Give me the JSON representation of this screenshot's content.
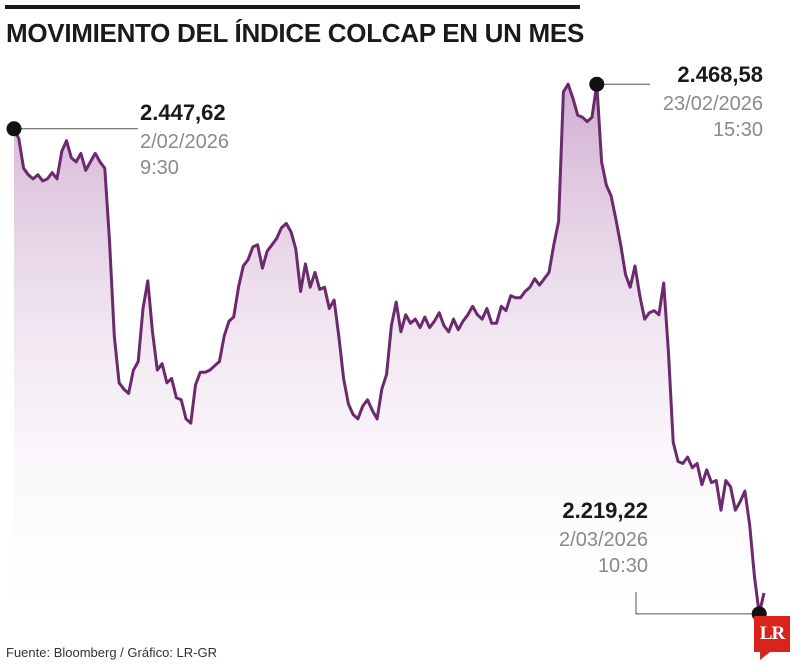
{
  "header": {
    "title": "MOVIMIENTO DEL ÍNDICE COLCAP EN UN MES"
  },
  "footer": {
    "source": "Fuente: Bloomberg / Gráfico: LR-GR",
    "logo_text": "LR"
  },
  "colors": {
    "line": "#6b2a6e",
    "fill_top": "#c9a0c9",
    "marker": "#111111",
    "logo": "#d9241b"
  },
  "chart_data": {
    "type": "area",
    "title": "MOVIMIENTO DEL ÍNDICE COLCAP EN UN MES",
    "xlabel": "",
    "ylabel": "",
    "ylim": [
      2205,
      2480
    ],
    "grid": false,
    "series": [
      {
        "values": [
          2447.6,
          2443,
          2429,
          2426,
          2424,
          2426,
          2423,
          2424,
          2427,
          2424,
          2437,
          2442,
          2434,
          2432,
          2436,
          2428,
          2432,
          2436,
          2432,
          2429,
          2395,
          2350,
          2328,
          2325,
          2323,
          2334,
          2338,
          2363,
          2376,
          2352,
          2334,
          2337,
          2328,
          2330,
          2321,
          2320,
          2311,
          2309,
          2327,
          2333,
          2333,
          2334,
          2336,
          2338,
          2350,
          2357,
          2359,
          2373,
          2383,
          2386,
          2392,
          2393,
          2382,
          2390,
          2393,
          2396,
          2401,
          2403,
          2399,
          2391,
          2371,
          2384,
          2373,
          2380,
          2372,
          2373,
          2363,
          2367,
          2350,
          2330,
          2318,
          2313,
          2311,
          2317,
          2320,
          2315,
          2311,
          2325,
          2332,
          2355,
          2366,
          2352,
          2360,
          2356,
          2358,
          2354,
          2359,
          2354,
          2357,
          2361,
          2355,
          2352,
          2358,
          2353,
          2357,
          2360,
          2364,
          2360,
          2358,
          2363,
          2356,
          2356,
          2364,
          2362,
          2369,
          2368,
          2368,
          2371,
          2373,
          2377,
          2374,
          2377,
          2380,
          2393,
          2404,
          2465,
          2468.6,
          2462,
          2454,
          2453,
          2451,
          2453,
          2468.6,
          2432,
          2421,
          2416,
          2405,
          2393,
          2379,
          2373,
          2383,
          2369,
          2358,
          2361,
          2362,
          2360,
          2375,
          2342,
          2300,
          2291,
          2290,
          2293,
          2288,
          2290,
          2280,
          2287,
          2281,
          2282,
          2268,
          2282,
          2279,
          2268,
          2272,
          2277,
          2261,
          2237,
          2219.2,
          2229
        ]
      }
    ],
    "annotations": [
      {
        "value": "2.447,62",
        "date": "2/02/2026",
        "time": "9:30",
        "kind": "start"
      },
      {
        "value": "2.468,58",
        "date": "23/02/2026",
        "time": "15:30",
        "kind": "max"
      },
      {
        "value": "2.219,22",
        "date": "2/03/2026",
        "time": "10:30",
        "kind": "min"
      }
    ]
  }
}
